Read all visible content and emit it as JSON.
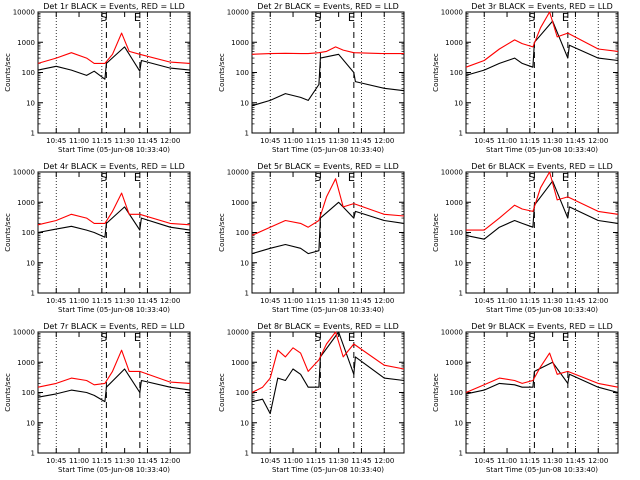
{
  "chart_data": [
    {
      "type": "line",
      "title": "Det 1r BLACK = Events, RED = LLD",
      "xlabel": "Start Time (05-Jun-08 10:33:40)",
      "ylabel": "Counts/sec",
      "ylog": true,
      "ylim": [
        1,
        10000
      ],
      "xlim": [
        "10:33",
        "12:13"
      ],
      "x_ticks": [
        "10:45",
        "11:00",
        "11:15",
        "11:30",
        "11:45",
        "12:00"
      ],
      "y_ticks": [
        "1",
        "10",
        "100",
        "1000",
        "10000"
      ],
      "dotted_lines": [
        "10:45",
        "11:15",
        "11:45",
        "12:00"
      ],
      "dashed_lines": [
        "11:18",
        "11:40"
      ],
      "markers": [
        {
          "label": "S",
          "at": "11:18"
        },
        {
          "label": "E",
          "at": "11:40"
        }
      ],
      "series": [
        {
          "name": "Events",
          "color": "#000000",
          "x": [
            "10:33",
            "10:45",
            "10:55",
            "11:05",
            "11:10",
            "11:17",
            "11:18",
            "11:30",
            "11:40",
            "11:41",
            "12:00",
            "12:13"
          ],
          "y": [
            120,
            160,
            120,
            80,
            110,
            60,
            200,
            700,
            110,
            250,
            140,
            120
          ]
        },
        {
          "name": "LLD",
          "color": "#ff0000",
          "x": [
            "10:33",
            "10:45",
            "10:55",
            "11:05",
            "11:10",
            "11:17",
            "11:22",
            "11:28",
            "11:33",
            "11:40",
            "12:00",
            "12:13"
          ],
          "y": [
            200,
            300,
            450,
            300,
            200,
            200,
            400,
            2000,
            500,
            400,
            220,
            200
          ]
        }
      ]
    },
    {
      "type": "line",
      "title": "Det 2r BLACK = Events, RED = LLD",
      "xlabel": "Start Time (05-Jun-08 10:33:40)",
      "ylabel": "Counts/sec",
      "ylog": true,
      "ylim": [
        1,
        10000
      ],
      "xlim": [
        "10:33",
        "12:13"
      ],
      "x_ticks": [
        "10:45",
        "11:00",
        "11:15",
        "11:30",
        "11:45",
        "12:00"
      ],
      "y_ticks": [
        "1",
        "10",
        "100",
        "1000",
        "10000"
      ],
      "dotted_lines": [
        "10:45",
        "11:15",
        "11:45",
        "12:00"
      ],
      "dashed_lines": [
        "11:18",
        "11:40"
      ],
      "markers": [
        {
          "label": "S",
          "at": "11:18"
        },
        {
          "label": "E",
          "at": "11:40"
        }
      ],
      "series": [
        {
          "name": "Events",
          "color": "#000000",
          "x": [
            "10:33",
            "10:45",
            "10:55",
            "11:05",
            "11:10",
            "11:17",
            "11:18",
            "11:30",
            "11:40",
            "11:41",
            "12:00",
            "12:13"
          ],
          "y": [
            8,
            12,
            20,
            15,
            12,
            40,
            300,
            400,
            100,
            50,
            30,
            25
          ]
        },
        {
          "name": "LLD",
          "color": "#ff0000",
          "x": [
            "10:33",
            "10:45",
            "10:55",
            "11:05",
            "11:10",
            "11:17",
            "11:22",
            "11:28",
            "11:33",
            "11:40",
            "12:00",
            "12:13"
          ],
          "y": [
            400,
            420,
            430,
            420,
            420,
            450,
            500,
            700,
            550,
            450,
            420,
            420
          ]
        }
      ]
    },
    {
      "type": "line",
      "title": "Det 3r BLACK = Events, RED = LLD",
      "xlabel": "Start Time (05-Jun-08 10:33:40)",
      "ylabel": "Counts/sec",
      "ylog": true,
      "ylim": [
        1,
        10000
      ],
      "xlim": [
        "10:33",
        "12:13"
      ],
      "x_ticks": [
        "10:45",
        "11:00",
        "11:15",
        "11:30",
        "11:45",
        "12:00"
      ],
      "y_ticks": [
        "1",
        "10",
        "100",
        "1000",
        "10000"
      ],
      "dotted_lines": [
        "10:45",
        "11:15",
        "11:45",
        "12:00"
      ],
      "dashed_lines": [
        "11:18",
        "11:40"
      ],
      "markers": [
        {
          "label": "S",
          "at": "11:18"
        },
        {
          "label": "E",
          "at": "11:40"
        }
      ],
      "series": [
        {
          "name": "Events",
          "color": "#000000",
          "x": [
            "10:33",
            "10:45",
            "10:55",
            "11:05",
            "11:10",
            "11:17",
            "11:18",
            "11:30",
            "11:40",
            "11:41",
            "12:00",
            "12:13"
          ],
          "y": [
            80,
            120,
            200,
            300,
            200,
            150,
            1000,
            5000,
            300,
            800,
            300,
            250
          ]
        },
        {
          "name": "LLD",
          "color": "#ff0000",
          "x": [
            "10:33",
            "10:45",
            "10:55",
            "11:05",
            "11:10",
            "11:17",
            "11:22",
            "11:28",
            "11:33",
            "11:40",
            "12:00",
            "12:13"
          ],
          "y": [
            150,
            250,
            600,
            1200,
            900,
            700,
            3000,
            10000,
            1500,
            2000,
            600,
            500
          ]
        }
      ]
    },
    {
      "type": "line",
      "title": "Det 4r BLACK = Events, RED = LLD",
      "xlabel": "Start Time (05-Jun-08 10:33:40)",
      "ylabel": "Counts/sec",
      "ylog": true,
      "ylim": [
        1,
        10000
      ],
      "xlim": [
        "10:33",
        "12:13"
      ],
      "x_ticks": [
        "10:45",
        "11:00",
        "11:15",
        "11:30",
        "11:45",
        "12:00"
      ],
      "y_ticks": [
        "1",
        "10",
        "100",
        "1000",
        "10000"
      ],
      "dotted_lines": [
        "10:45",
        "11:15",
        "11:45",
        "12:00"
      ],
      "dashed_lines": [
        "11:18",
        "11:40"
      ],
      "markers": [
        {
          "label": "S",
          "at": "11:18"
        },
        {
          "label": "E",
          "at": "11:40"
        }
      ],
      "series": [
        {
          "name": "Events",
          "color": "#000000",
          "x": [
            "10:33",
            "10:45",
            "10:55",
            "11:05",
            "11:10",
            "11:17",
            "11:18",
            "11:30",
            "11:40",
            "11:41",
            "12:00",
            "12:13"
          ],
          "y": [
            100,
            130,
            160,
            120,
            100,
            70,
            200,
            700,
            120,
            300,
            150,
            120
          ]
        },
        {
          "name": "LLD",
          "color": "#ff0000",
          "x": [
            "10:33",
            "10:45",
            "10:55",
            "11:05",
            "11:10",
            "11:17",
            "11:22",
            "11:28",
            "11:33",
            "11:40",
            "12:00",
            "12:13"
          ],
          "y": [
            180,
            250,
            400,
            300,
            200,
            200,
            500,
            2000,
            400,
            400,
            200,
            180
          ]
        }
      ]
    },
    {
      "type": "line",
      "title": "Det 5r BLACK = Events, RED = LLD",
      "xlabel": "Start Time (05-Jun-08 10:33:40)",
      "ylabel": "Counts/sec",
      "ylog": true,
      "ylim": [
        1,
        10000
      ],
      "xlim": [
        "10:33",
        "12:13"
      ],
      "x_ticks": [
        "10:45",
        "11:00",
        "11:15",
        "11:30",
        "11:45",
        "12:00"
      ],
      "y_ticks": [
        "1",
        "10",
        "100",
        "1000",
        "10000"
      ],
      "dotted_lines": [
        "10:45",
        "11:15",
        "11:45",
        "12:00"
      ],
      "dashed_lines": [
        "11:18",
        "11:40"
      ],
      "markers": [
        {
          "label": "S",
          "at": "11:18"
        },
        {
          "label": "E",
          "at": "11:40"
        }
      ],
      "series": [
        {
          "name": "Events",
          "color": "#000000",
          "x": [
            "10:33",
            "10:45",
            "10:55",
            "11:05",
            "11:10",
            "11:17",
            "11:18",
            "11:30",
            "11:40",
            "11:41",
            "12:00",
            "12:13"
          ],
          "y": [
            20,
            30,
            40,
            30,
            20,
            25,
            300,
            1000,
            300,
            500,
            250,
            200
          ]
        },
        {
          "name": "LLD",
          "color": "#ff0000",
          "x": [
            "10:33",
            "10:45",
            "10:55",
            "11:05",
            "11:10",
            "11:17",
            "11:22",
            "11:28",
            "11:33",
            "11:40",
            "12:00",
            "12:13"
          ],
          "y": [
            80,
            150,
            250,
            200,
            150,
            250,
            1500,
            6000,
            700,
            900,
            400,
            350
          ]
        }
      ]
    },
    {
      "type": "line",
      "title": "Det 6r BLACK = Events, RED = LLD",
      "xlabel": "Start Time (05-Jun-08 10:33:40)",
      "ylabel": "Counts/sec",
      "ylog": true,
      "ylim": [
        1,
        10000
      ],
      "xlim": [
        "10:33",
        "12:13"
      ],
      "x_ticks": [
        "10:45",
        "11:00",
        "11:15",
        "11:30",
        "11:45",
        "12:00"
      ],
      "y_ticks": [
        "1",
        "10",
        "100",
        "1000",
        "10000"
      ],
      "dotted_lines": [
        "10:45",
        "11:15",
        "11:45",
        "12:00"
      ],
      "dashed_lines": [
        "11:18",
        "11:40"
      ],
      "markers": [
        {
          "label": "S",
          "at": "11:18"
        },
        {
          "label": "E",
          "at": "11:40"
        }
      ],
      "series": [
        {
          "name": "Events",
          "color": "#000000",
          "x": [
            "10:33",
            "10:45",
            "10:55",
            "11:05",
            "11:10",
            "11:17",
            "11:18",
            "11:30",
            "11:40",
            "11:41",
            "12:00",
            "12:13"
          ],
          "y": [
            80,
            60,
            150,
            250,
            200,
            150,
            800,
            5000,
            300,
            700,
            250,
            200
          ]
        },
        {
          "name": "LLD",
          "color": "#ff0000",
          "x": [
            "10:33",
            "10:45",
            "10:55",
            "11:05",
            "11:10",
            "11:17",
            "11:22",
            "11:28",
            "11:33",
            "11:40",
            "12:00",
            "12:13"
          ],
          "y": [
            120,
            120,
            300,
            800,
            600,
            500,
            3000,
            10000,
            1200,
            1500,
            500,
            400
          ]
        }
      ]
    },
    {
      "type": "line",
      "title": "Det 7r BLACK = Events, RED = LLD",
      "xlabel": "Start Time (05-Jun-08 10:33:40)",
      "ylabel": "Counts/sec",
      "ylog": true,
      "ylim": [
        1,
        10000
      ],
      "xlim": [
        "10:33",
        "12:13"
      ],
      "x_ticks": [
        "10:45",
        "11:00",
        "11:15",
        "11:30",
        "11:45",
        "12:00"
      ],
      "y_ticks": [
        "1",
        "10",
        "100",
        "1000",
        "10000"
      ],
      "dotted_lines": [
        "10:45",
        "11:15",
        "11:45",
        "12:00"
      ],
      "dashed_lines": [
        "11:18",
        "11:40"
      ],
      "markers": [
        {
          "label": "S",
          "at": "11:18"
        },
        {
          "label": "E",
          "at": "11:40"
        }
      ],
      "series": [
        {
          "name": "Events",
          "color": "#000000",
          "x": [
            "10:33",
            "10:45",
            "10:55",
            "11:05",
            "11:10",
            "11:17",
            "11:18",
            "11:30",
            "11:40",
            "11:41",
            "12:00",
            "12:13"
          ],
          "y": [
            70,
            90,
            120,
            100,
            80,
            50,
            150,
            600,
            100,
            250,
            150,
            120
          ]
        },
        {
          "name": "LLD",
          "color": "#ff0000",
          "x": [
            "10:33",
            "10:45",
            "10:55",
            "11:05",
            "11:10",
            "11:17",
            "11:22",
            "11:28",
            "11:33",
            "11:40",
            "12:00",
            "12:13"
          ],
          "y": [
            150,
            200,
            300,
            250,
            180,
            200,
            500,
            2500,
            500,
            500,
            220,
            200
          ]
        }
      ]
    },
    {
      "type": "line",
      "title": "Det 8r BLACK = Events, RED = LLD",
      "xlabel": "Start Time (05-Jun-08 10:33:40)",
      "ylabel": "Counts/sec",
      "ylog": true,
      "ylim": [
        1,
        10000
      ],
      "xlim": [
        "10:33",
        "12:13"
      ],
      "x_ticks": [
        "10:45",
        "11:00",
        "11:15",
        "11:30",
        "11:45",
        "12:00"
      ],
      "y_ticks": [
        "1",
        "10",
        "100",
        "1000",
        "10000"
      ],
      "dotted_lines": [
        "10:45",
        "11:15",
        "11:45",
        "12:00"
      ],
      "dashed_lines": [
        "11:18",
        "11:40"
      ],
      "markers": [
        {
          "label": "S",
          "at": "11:18"
        },
        {
          "label": "E",
          "at": "11:40"
        }
      ],
      "series": [
        {
          "name": "Events",
          "color": "#000000",
          "x": [
            "10:33",
            "10:40",
            "10:45",
            "10:50",
            "10:55",
            "11:00",
            "11:05",
            "11:10",
            "11:17",
            "11:18",
            "11:30",
            "11:40",
            "11:41",
            "12:00",
            "12:13"
          ],
          "y": [
            50,
            60,
            20,
            300,
            250,
            600,
            400,
            150,
            150,
            1500,
            10000,
            400,
            1500,
            300,
            250
          ]
        },
        {
          "name": "LLD",
          "color": "#ff0000",
          "x": [
            "10:33",
            "10:40",
            "10:45",
            "10:50",
            "10:55",
            "11:00",
            "11:05",
            "11:10",
            "11:17",
            "11:22",
            "11:28",
            "11:33",
            "11:40",
            "12:00",
            "12:13"
          ],
          "y": [
            100,
            150,
            300,
            2500,
            1500,
            3000,
            2000,
            500,
            1200,
            4000,
            10000,
            1500,
            4000,
            800,
            600
          ]
        }
      ]
    },
    {
      "type": "line",
      "title": "Det 9r BLACK = Events, RED = LLD",
      "xlabel": "Start Time (05-Jun-08 10:33:40)",
      "ylabel": "Counts/sec",
      "ylog": true,
      "ylim": [
        1,
        10000
      ],
      "xlim": [
        "10:33",
        "12:13"
      ],
      "x_ticks": [
        "10:45",
        "11:00",
        "11:15",
        "11:30",
        "11:45",
        "12:00"
      ],
      "y_ticks": [
        "1",
        "10",
        "100",
        "1000",
        "10000"
      ],
      "dotted_lines": [
        "10:45",
        "11:15",
        "11:45",
        "12:00"
      ],
      "dashed_lines": [
        "11:18",
        "11:40"
      ],
      "markers": [
        {
          "label": "S",
          "at": "11:18"
        },
        {
          "label": "E",
          "at": "11:40"
        }
      ],
      "series": [
        {
          "name": "Events",
          "color": "#000000",
          "x": [
            "10:33",
            "10:45",
            "10:55",
            "11:05",
            "11:10",
            "11:17",
            "11:18",
            "11:30",
            "11:40",
            "11:41",
            "12:00",
            "12:13"
          ],
          "y": [
            90,
            120,
            200,
            180,
            150,
            150,
            500,
            1000,
            200,
            400,
            150,
            100
          ]
        },
        {
          "name": "LLD",
          "color": "#ff0000",
          "x": [
            "10:33",
            "10:45",
            "10:55",
            "11:05",
            "11:10",
            "11:17",
            "11:22",
            "11:28",
            "11:33",
            "11:40",
            "12:00",
            "12:13"
          ],
          "y": [
            100,
            180,
            300,
            250,
            200,
            250,
            700,
            2000,
            400,
            500,
            200,
            150
          ]
        }
      ]
    }
  ]
}
